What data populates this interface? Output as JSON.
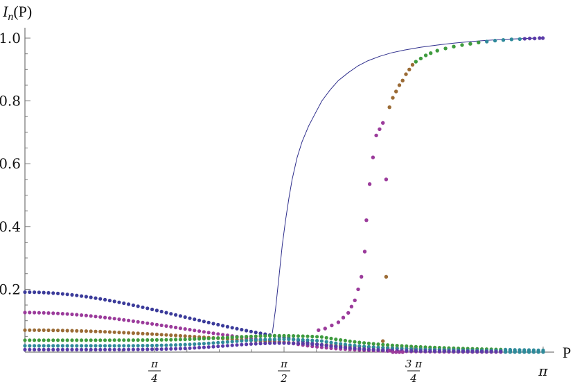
{
  "chart_data": {
    "type": "scatter",
    "ylabel_main": "I",
    "ylabel_sub": "n",
    "ylabel_arg": "(P)",
    "xlabel": "P",
    "xlim": [
      0,
      3.14159
    ],
    "ylim": [
      0,
      1.0
    ],
    "y_ticks": [
      {
        "value": 0.2,
        "label": "0.2"
      },
      {
        "value": 0.4,
        "label": "0.4"
      },
      {
        "value": 0.6,
        "label": "0.6"
      },
      {
        "value": 0.8,
        "label": "0.8"
      },
      {
        "value": 1.0,
        "label": "1.0"
      }
    ],
    "x_ticks": [
      {
        "value": 0.7854,
        "num": "π",
        "den": "4"
      },
      {
        "value": 1.5708,
        "num": "π",
        "den": "2"
      },
      {
        "value": 2.3562,
        "num": "3 π",
        "den": "4"
      },
      {
        "value": 3.14159,
        "label": "π"
      }
    ],
    "colors": [
      "#3b3b9a",
      "#9b3b9b",
      "#9b6b35",
      "#3e9b3e",
      "#2f8a9a",
      "#5b3ba8"
    ],
    "curve": {
      "name": "",
      "color": "#2e2e8c",
      "x": [
        1.5,
        1.52,
        1.54,
        1.56,
        1.58,
        1.6,
        1.62,
        1.65,
        1.68,
        1.72,
        1.76,
        1.8,
        1.85,
        1.9,
        1.96,
        2.02,
        2.08,
        2.15,
        2.22,
        2.3,
        2.4,
        2.5,
        2.6,
        2.7,
        2.8,
        2.9,
        3.0,
        3.1
      ],
      "y": [
        0.06,
        0.14,
        0.24,
        0.34,
        0.42,
        0.49,
        0.55,
        0.62,
        0.67,
        0.72,
        0.76,
        0.8,
        0.835,
        0.865,
        0.89,
        0.912,
        0.928,
        0.942,
        0.953,
        0.962,
        0.971,
        0.978,
        0.984,
        0.989,
        0.993,
        0.996,
        0.998,
        1.0
      ]
    },
    "transition_series": [
      {
        "name": "",
        "color": "#9b3b9b",
        "x": [
          1.78,
          1.82,
          1.86,
          1.9,
          1.93,
          1.96,
          1.98,
          2.0,
          2.02,
          2.04,
          2.06,
          2.07,
          2.09,
          2.11,
          2.13,
          2.15,
          2.17,
          2.19,
          2.21,
          2.23,
          2.25,
          2.27,
          2.29
        ],
        "y": [
          0.07,
          0.075,
          0.085,
          0.095,
          0.11,
          0.125,
          0.145,
          0.165,
          0.2,
          0.24,
          0.32,
          0.42,
          0.535,
          0.62,
          0.69,
          0.71,
          0.73,
          0.55,
          0.005,
          0.0,
          0.0,
          0.0,
          0.0
        ]
      },
      {
        "name": "",
        "color": "#9b6b35",
        "x": [
          2.17,
          2.19,
          2.21,
          2.23,
          2.25,
          2.27,
          2.29,
          2.31,
          2.33,
          2.35
        ],
        "y": [
          0.035,
          0.24,
          0.78,
          0.81,
          0.83,
          0.85,
          0.865,
          0.885,
          0.9,
          0.915
        ]
      },
      {
        "name": "",
        "color": "#3e9b3e",
        "x": [
          2.37,
          2.4,
          2.43,
          2.46,
          2.5,
          2.55,
          2.6,
          2.65,
          2.7,
          2.75
        ],
        "y": [
          0.925,
          0.935,
          0.945,
          0.952,
          0.96,
          0.967,
          0.973,
          0.978,
          0.982,
          0.986
        ]
      },
      {
        "name": "",
        "color": "#2f8a9a",
        "x": [
          2.8,
          2.85,
          2.9,
          2.95,
          3.0
        ],
        "y": [
          0.989,
          0.992,
          0.994,
          0.996,
          0.997
        ]
      },
      {
        "name": "",
        "color": "#5b3ba8",
        "x": [
          3.03,
          3.06,
          3.09,
          3.12,
          3.14
        ],
        "y": [
          0.998,
          0.999,
          0.999,
          1.0,
          1.0
        ]
      }
    ],
    "bands": [
      {
        "name": "",
        "color": "#3b3b9a",
        "y0": 0.19,
        "shape": "bell-decay"
      },
      {
        "name": "",
        "color": "#9b3b9b",
        "y0": 0.125,
        "shape": "bell-decay"
      },
      {
        "name": "",
        "color": "#9b6b35",
        "y0": 0.07,
        "shape": "slow-decay"
      },
      {
        "name": "",
        "color": "#3e9b3e",
        "y0": 0.038,
        "shape": "rise-then-fall"
      },
      {
        "name": "",
        "color": "#2f8a9a",
        "y0": 0.02,
        "shape": "rise-then-fall"
      },
      {
        "name": "",
        "color": "#5b3ba8",
        "y0": 0.008,
        "shape": "rise-then-fall"
      }
    ]
  }
}
